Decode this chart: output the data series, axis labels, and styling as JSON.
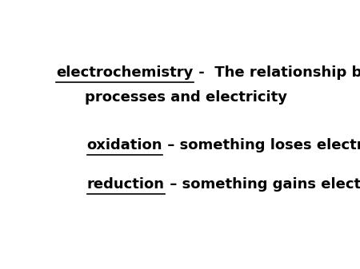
{
  "background_color": "#ffffff",
  "line1_part1": "electrochemistry",
  "line1_part2": " -  The relationship between chemical",
  "line2_center": "processes and electricity",
  "line3_part1": "oxidation",
  "line3_part2": "– something loses electrons",
  "line4_part1": "reduction",
  "line4_part2": "– something gains electrons",
  "font_size": 13,
  "font_color": "#000000",
  "font_family": "DejaVu Sans"
}
